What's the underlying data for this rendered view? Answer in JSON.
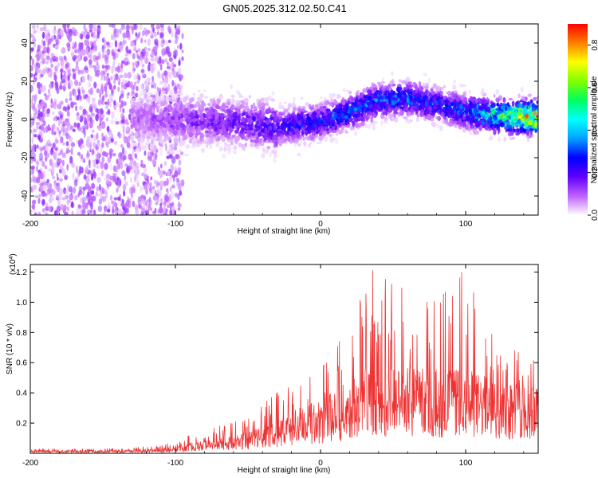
{
  "title": "GN05.2025.312.02.50.C41",
  "chart_data": [
    {
      "type": "heatmap",
      "title": "GN05.2025.312.02.50.C41",
      "xlabel": "Height of straight line (km)",
      "ylabel": "Frequency (Hz)",
      "xlim": [
        -200,
        150
      ],
      "ylim": [
        -50,
        50
      ],
      "xticks": [
        -200,
        -100,
        0,
        100
      ],
      "xtick_labels": [
        "-200",
        "-100",
        "0",
        "100"
      ],
      "yticks": [
        -40,
        -20,
        0,
        20,
        40
      ],
      "ytick_labels": [
        "-40",
        "-20",
        "0",
        "20",
        "40"
      ],
      "colorbar": {
        "label": "Normalized spectral amplitude",
        "range": [
          0,
          0.9
        ],
        "ticks": [
          0,
          0.2,
          0.4,
          0.6,
          0.8
        ],
        "tick_labels": [
          "0.0",
          "0.2",
          "0.4",
          "0.6",
          "0.8"
        ],
        "colormap": [
          "#ffffff",
          "#c060ff",
          "#6000ff",
          "#0000ff",
          "#00a0ff",
          "#00ffff",
          "#00ff60",
          "#80ff00",
          "#ffff00",
          "#ff8000",
          "#ff0000"
        ]
      },
      "ridge": {
        "x": [
          -130,
          -100,
          -50,
          -30,
          0,
          20,
          40,
          60,
          80,
          100,
          120,
          150
        ],
        "center_freq": [
          0,
          0,
          -2,
          -4,
          -1,
          4,
          10,
          11,
          8,
          4,
          2,
          1
        ],
        "peak_amplitude": [
          0.1,
          0.15,
          0.2,
          0.25,
          0.3,
          0.35,
          0.35,
          0.35,
          0.3,
          0.35,
          0.55,
          0.9
        ]
      },
      "noise_region_x": [
        -200,
        -95
      ]
    },
    {
      "type": "line",
      "xlabel": "Height of straight line (km)",
      "ylabel": "SNR (10 * v/v)",
      "y_scale_label": "(x10",
      "y_scale_exponent": "4",
      "y_scale_suffix": ")",
      "xlim": [
        -200,
        150
      ],
      "ylim": [
        0,
        1.25
      ],
      "xticks": [
        -200,
        -100,
        0,
        100
      ],
      "xtick_labels": [
        "-200",
        "-100",
        "0",
        "100"
      ],
      "yticks": [
        0.2,
        0.4,
        0.6,
        0.8,
        1.0,
        1.2
      ],
      "ytick_labels": [
        "0.2",
        "0.4",
        "0.6",
        "0.8",
        "1.0",
        "1.2"
      ],
      "color": "#ee3333",
      "envelope": {
        "x": [
          -200,
          -150,
          -110,
          -90,
          -70,
          -50,
          -30,
          -15,
          0,
          10,
          20,
          30,
          50,
          80,
          100,
          120,
          150
        ],
        "mean": [
          0.015,
          0.015,
          0.02,
          0.05,
          0.07,
          0.1,
          0.15,
          0.22,
          0.25,
          0.3,
          0.35,
          0.4,
          0.42,
          0.4,
          0.4,
          0.35,
          0.35
        ],
        "max": [
          0.03,
          0.03,
          0.05,
          0.12,
          0.18,
          0.25,
          0.4,
          0.5,
          0.55,
          0.7,
          0.95,
          1.25,
          1.12,
          1.0,
          1.23,
          0.75,
          0.6
        ]
      }
    }
  ]
}
